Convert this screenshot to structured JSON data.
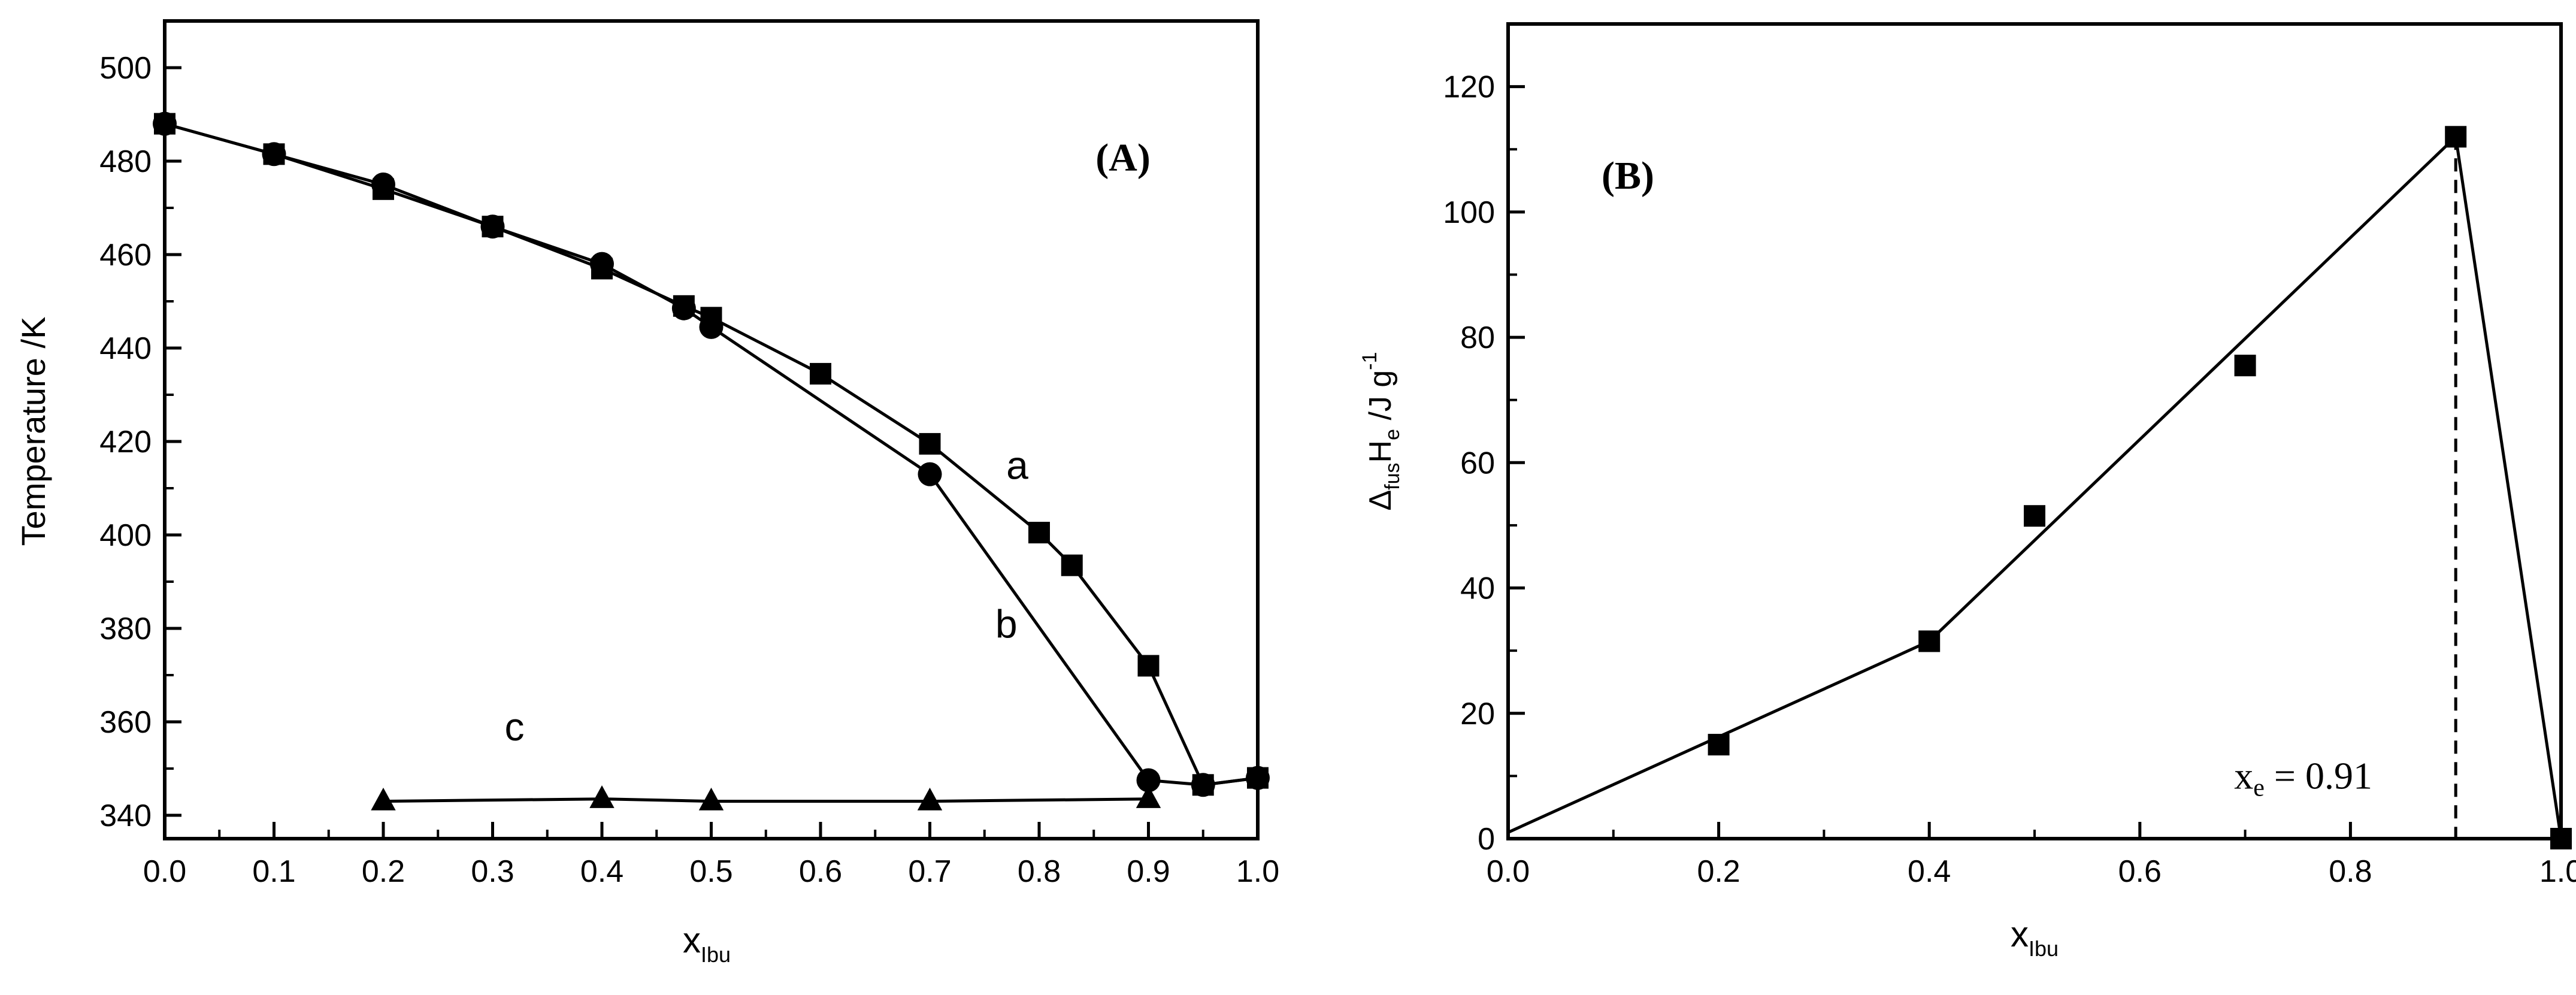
{
  "chart_data": [
    {
      "panel_label": "(A)",
      "type": "line",
      "xlabel": "x",
      "xlabel_sub": "Ibu",
      "ylabel": "Temperature /K",
      "xlim": [
        0.0,
        1.0
      ],
      "ylim": [
        335,
        510
      ],
      "xticks": [
        "0.0",
        "0.1",
        "0.2",
        "0.3",
        "0.4",
        "0.5",
        "0.6",
        "0.7",
        "0.8",
        "0.9",
        "1.0"
      ],
      "yticks": [
        "340",
        "360",
        "380",
        "400",
        "420",
        "440",
        "460",
        "480",
        "500"
      ],
      "series": [
        {
          "name": "a",
          "marker": "square",
          "x": [
            0.0,
            0.1,
            0.2,
            0.3,
            0.4,
            0.475,
            0.5,
            0.6,
            0.7,
            0.8,
            0.83,
            0.9,
            0.95,
            1.0
          ],
          "y": [
            488,
            481.5,
            474,
            466,
            457,
            449,
            446.5,
            434.5,
            419.5,
            400.5,
            393.5,
            372,
            346.5,
            348
          ]
        },
        {
          "name": "b",
          "marker": "circle",
          "x": [
            0.0,
            0.1,
            0.2,
            0.3,
            0.4,
            0.475,
            0.5,
            0.7,
            0.9,
            0.95,
            1.0
          ],
          "y": [
            488,
            481.5,
            475,
            466,
            458,
            448.5,
            444.5,
            413,
            347.5,
            346.5,
            348
          ]
        },
        {
          "name": "c",
          "marker": "triangle",
          "x": [
            0.2,
            0.4,
            0.5,
            0.7,
            0.9
          ],
          "y": [
            343,
            343.5,
            343,
            343,
            343.5
          ]
        }
      ],
      "annotations": [
        {
          "text": "a",
          "x": 0.78,
          "y": 412
        },
        {
          "text": "b",
          "x": 0.77,
          "y": 378
        },
        {
          "text": "c",
          "x": 0.32,
          "y": 356
        }
      ]
    },
    {
      "panel_label": "(B)",
      "type": "line",
      "xlabel": "x",
      "xlabel_sub": "Ibu",
      "ylabel": "Δ",
      "ylabel_parts": {
        "s1": "fus",
        "h": "H",
        "s2": "e",
        "unit": " /J g",
        "exp": "-1"
      },
      "xlim": [
        0.0,
        1.0
      ],
      "ylim": [
        0,
        130
      ],
      "xticks": [
        "0.0",
        "0.2",
        "0.4",
        "0.6",
        "0.8",
        "1.0"
      ],
      "yticks": [
        "0",
        "20",
        "40",
        "60",
        "80",
        "100",
        "120"
      ],
      "line": {
        "x": [
          0.0,
          0.4,
          0.9,
          1.0
        ],
        "y": [
          1,
          31.5,
          112,
          0
        ]
      },
      "points": {
        "x": [
          0.2,
          0.4,
          0.5,
          0.7,
          0.9,
          1.0
        ],
        "y": [
          15,
          31.5,
          51.5,
          75.5,
          112,
          0
        ]
      },
      "eutectic": {
        "x": 0.9,
        "label_base": "x",
        "label_sub": "e",
        "label_value": " = 0.91"
      }
    }
  ]
}
